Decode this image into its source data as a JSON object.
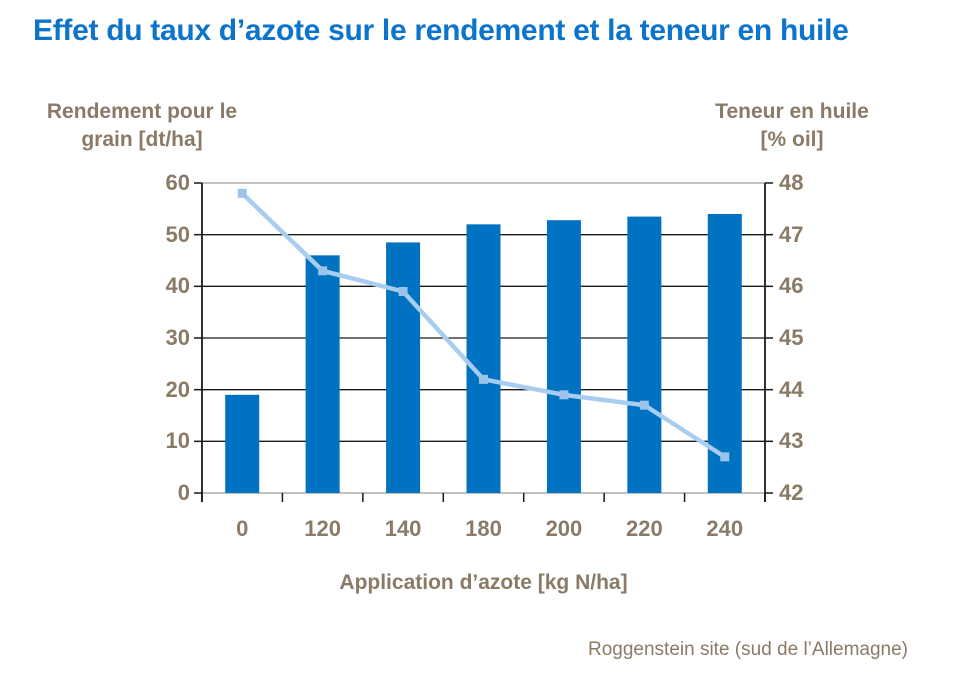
{
  "title": "Effet du taux d’azote sur le rendement et la teneur en huile",
  "axes": {
    "left_title_line1": "Rendement pour le",
    "left_title_line2": "grain [dt/ha]",
    "right_title_line1": "Teneur en huile",
    "right_title_line2": "[% oil]"
  },
  "footer": "Roggenstein site (sud de l’Allemagne)",
  "colors": {
    "title": "#0c74cc",
    "bar": "#0072c2",
    "line": "#a9cdf0",
    "marker": "#9cc4ea",
    "label": "#8a7a66",
    "grid": "#1a1a1a",
    "frame": "#9b9b9b"
  },
  "chart_data": {
    "type": "combo",
    "title": "Effet du taux d’azote sur le rendement et la teneur en huile",
    "categories": [
      "0",
      "120",
      "140",
      "180",
      "200",
      "220",
      "240"
    ],
    "series": [
      {
        "name": "Rendement pour le grain [dt/ha]",
        "type": "bar",
        "axis": "left",
        "values": [
          19,
          46,
          48.5,
          52,
          52.8,
          53.5,
          54
        ]
      },
      {
        "name": "Teneur en huile [% oil]",
        "type": "line",
        "axis": "right",
        "values": [
          47.8,
          46.3,
          45.9,
          44.2,
          43.9,
          43.7,
          42.7
        ]
      }
    ],
    "xlabel": "Application d’azote [kg N/ha]",
    "left_axis": {
      "label": "Rendement pour le grain [dt/ha]",
      "min": 0,
      "max": 60,
      "step": 10,
      "ticks": [
        "0",
        "10",
        "20",
        "30",
        "40",
        "50",
        "60"
      ]
    },
    "right_axis": {
      "label": "Teneur en huile [% oil]",
      "min": 42,
      "max": 48,
      "step": 1,
      "ticks": [
        "42",
        "43",
        "44",
        "45",
        "46",
        "47",
        "48"
      ]
    },
    "grid": true,
    "legend": "none",
    "source_note": "Roggenstein site (sud de l’Allemagne)"
  }
}
